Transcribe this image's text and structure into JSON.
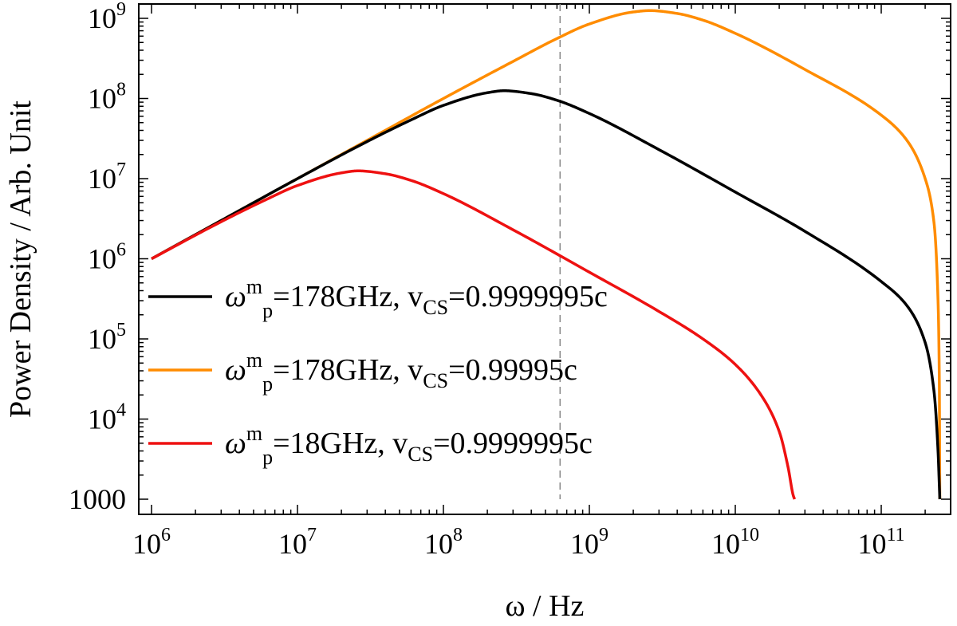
{
  "chart_data": {
    "type": "line",
    "xscale": "log",
    "yscale": "log",
    "xlabel": "ω / Hz",
    "ylabel": "Power Density / Arb. Unit",
    "xlim": [
      1000000,
      280000000000
    ],
    "ylim": [
      1000,
      1000000000
    ],
    "x_ticks": [
      {
        "base": "10",
        "exp": "6",
        "value": 1000000
      },
      {
        "base": "10",
        "exp": "7",
        "value": 10000000
      },
      {
        "base": "10",
        "exp": "8",
        "value": 100000000
      },
      {
        "base": "10",
        "exp": "9",
        "value": 1000000000
      },
      {
        "base": "10",
        "exp": "10",
        "value": 10000000000
      },
      {
        "base": "10",
        "exp": "11",
        "value": 100000000000
      }
    ],
    "y_ticks": [
      {
        "base": "1000",
        "exp": "",
        "value": 1000
      },
      {
        "base": "10",
        "exp": "4",
        "value": 10000
      },
      {
        "base": "10",
        "exp": "5",
        "value": 100000
      },
      {
        "base": "10",
        "exp": "6",
        "value": 1000000
      },
      {
        "base": "10",
        "exp": "7",
        "value": 10000000
      },
      {
        "base": "10",
        "exp": "8",
        "value": 100000000
      },
      {
        "base": "10",
        "exp": "9",
        "value": 1000000000
      }
    ],
    "reference_line": {
      "x": 630000000,
      "style": "dashed",
      "color": "#888888"
    },
    "grid": false,
    "legend_position": "left",
    "series": [
      {
        "legend": {
          "omega": "ω",
          "sup": "m",
          "sub": "p",
          "freq": "=178GHz",
          "sep": ",",
          "v": "v",
          "vsub": "CS",
          "vval": "=0.9999995c"
        },
        "color": "#000000",
        "x": [
          1000000,
          3000000,
          10000000,
          30000000,
          60000000,
          100000000,
          200000000,
          260000000,
          400000000,
          600000000,
          1000000000,
          3000000000,
          10000000000,
          30000000000,
          100000000000,
          150000000000,
          200000000000,
          230000000000,
          245000000000,
          250000000000,
          252000000000
        ],
        "y": [
          1000000,
          3000000,
          10000000,
          29000000,
          54000000,
          82000000,
          118000000,
          125000000,
          115000000,
          95000000,
          65000000,
          23000000,
          6800000,
          2200000,
          520000,
          260000,
          90000,
          22000,
          4000,
          1500,
          1000
        ]
      },
      {
        "legend": {
          "omega": "ω",
          "sup": "m",
          "sub": "p",
          "freq": "=178GHz",
          "sep": ",",
          "v": "v",
          "vsub": "CS",
          "vval": "=0.99995c"
        },
        "color": "#ff8c00",
        "x": [
          1000000,
          3000000,
          10000000,
          30000000,
          100000000,
          300000000,
          600000000,
          1000000000,
          2000000000,
          2600000000,
          4000000000,
          6000000000,
          10000000000,
          30000000000,
          100000000000,
          150000000000,
          200000000000,
          230000000000,
          245000000000,
          250000000000,
          252000000000
        ],
        "y": [
          1000000,
          3000000,
          10000000,
          30000000,
          100000000,
          290000000,
          560000000,
          850000000,
          1200000000,
          1250000000,
          1150000000,
          950000000,
          650000000,
          230000000,
          62000000,
          30000000,
          10000000,
          2800000,
          300000,
          30000,
          1000
        ]
      },
      {
        "legend": {
          "omega": "ω",
          "sup": "m",
          "sub": "p",
          "freq": "=18GHz",
          "sep": ",",
          "v": "v",
          "vsub": "CS",
          "vval": "=0.9999995c"
        },
        "color": "#ee1111",
        "x": [
          1000000,
          3000000,
          6000000,
          10000000,
          20000000,
          26000000,
          40000000,
          60000000,
          100000000,
          300000000,
          1000000000,
          3000000000,
          6000000000,
          10000000000,
          15000000000,
          20000000000,
          23000000000,
          25000000000,
          25500000000
        ],
        "y": [
          1000000,
          2900000,
          5400000,
          8200000,
          11800000,
          12500000,
          11500000,
          9500000,
          6500000,
          2300000,
          680000,
          220000,
          100000,
          48000,
          20000,
          7000,
          2500,
          1100,
          1000
        ]
      }
    ]
  }
}
